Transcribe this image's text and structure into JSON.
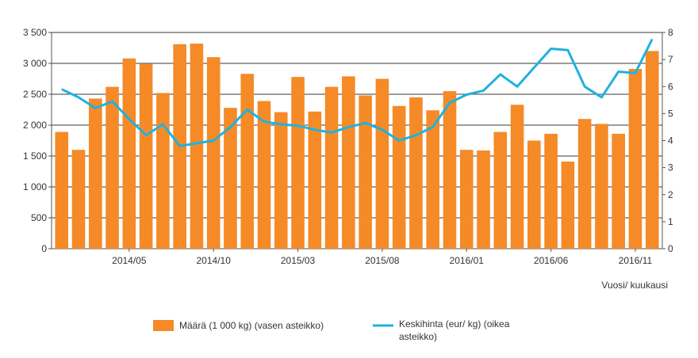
{
  "chart_data": {
    "type": "bar",
    "categories": [
      "2014/01",
      "2014/02",
      "2014/03",
      "2014/04",
      "2014/05",
      "2014/06",
      "2014/07",
      "2014/08",
      "2014/09",
      "2014/10",
      "2014/11",
      "2014/12",
      "2015/01",
      "2015/02",
      "2015/03",
      "2015/04",
      "2015/05",
      "2015/06",
      "2015/07",
      "2015/08",
      "2015/09",
      "2015/10",
      "2015/11",
      "2015/12",
      "2016/01",
      "2016/02",
      "2016/03",
      "2016/04",
      "2016/05",
      "2016/06",
      "2016/07",
      "2016/08",
      "2016/09",
      "2016/10",
      "2016/11",
      "2016/12"
    ],
    "x_tick_labels": [
      "2014/05",
      "2014/10",
      "2015/03",
      "2015/08",
      "2016/01",
      "2016/06",
      "2016/11"
    ],
    "series": [
      {
        "name": "Määrä (1 000 kg) (vasen asteikko)",
        "type": "bar",
        "axis": "left",
        "color": "#f58a27",
        "values": [
          1890,
          1600,
          2430,
          2620,
          3080,
          2990,
          2520,
          3310,
          3320,
          3100,
          2280,
          2830,
          2390,
          2210,
          2780,
          2220,
          2620,
          2790,
          2480,
          2750,
          2310,
          2450,
          2240,
          2550,
          1600,
          1590,
          1890,
          2330,
          1750,
          1860,
          1410,
          2100,
          2020,
          1860,
          2910,
          3200
        ]
      },
      {
        "name": "Keskihinta (eur/ kg) (oikea asteikko)",
        "type": "line",
        "axis": "right",
        "color": "#1fb2e0",
        "values": [
          5.9,
          5.6,
          5.2,
          5.45,
          4.8,
          4.2,
          4.6,
          3.8,
          3.9,
          4.0,
          4.5,
          5.15,
          4.7,
          4.6,
          4.55,
          4.4,
          4.3,
          4.5,
          4.65,
          4.4,
          4.0,
          4.2,
          4.5,
          5.4,
          5.7,
          5.85,
          6.45,
          6.0,
          6.7,
          7.4,
          7.35,
          6.0,
          5.6,
          6.55,
          6.5,
          7.75
        ]
      }
    ],
    "left_axis": {
      "min": 0,
      "max": 3500,
      "ticks": [
        0,
        500,
        1000,
        1500,
        2000,
        2500,
        3000,
        3500
      ],
      "tick_labels": [
        "0",
        "500",
        "1 000",
        "1 500",
        "2 000",
        "2 500",
        "3 000",
        "3 500"
      ]
    },
    "right_axis": {
      "min": 0,
      "max": 8,
      "ticks": [
        0,
        1,
        2,
        3,
        4,
        5,
        6,
        7,
        8
      ],
      "tick_labels": [
        "0",
        "1",
        "2",
        "3",
        "4",
        "5",
        "6",
        "7",
        "8"
      ]
    },
    "xlabel": "Vuosi/ kuukausi",
    "grid": true,
    "legend_position": "bottom-center",
    "legend_text": {
      "bars": "Määrä (1 000 kg) (vasen asteikko)",
      "line_1": "Keskihinta (eur/ kg) (oikea",
      "line_2": "asteikko)"
    }
  }
}
